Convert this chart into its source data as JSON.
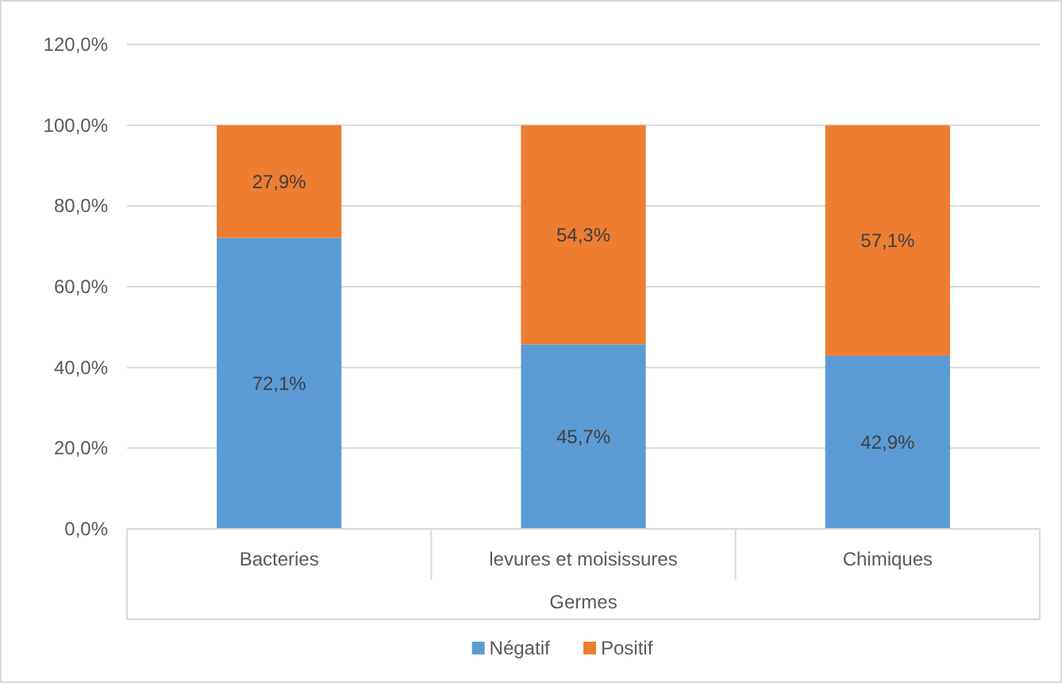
{
  "chart_data": {
    "type": "bar",
    "stacked": true,
    "xlabel": "Germes",
    "categories": [
      "Bacteries",
      "levures et moisissures",
      "Chimiques"
    ],
    "series": [
      {
        "name": "Négatif",
        "color": "#5b9bd5",
        "values": [
          72.1,
          45.7,
          42.9
        ],
        "value_labels": [
          "72,1%",
          "45,7%",
          "42,9%"
        ]
      },
      {
        "name": "Positif",
        "color": "#ed7d31",
        "values": [
          27.9,
          54.3,
          57.1
        ],
        "value_labels": [
          "27,9%",
          "54,3%",
          "57,1%"
        ]
      }
    ],
    "ylim": [
      0,
      120
    ],
    "yticks": [
      {
        "value": 0,
        "label": "0,0%"
      },
      {
        "value": 20,
        "label": "20,0%"
      },
      {
        "value": 40,
        "label": "40,0%"
      },
      {
        "value": 60,
        "label": "60,0%"
      },
      {
        "value": 80,
        "label": "80,0%"
      },
      {
        "value": 100,
        "label": "100,0%"
      },
      {
        "value": 120,
        "label": "120,0%"
      }
    ],
    "grid": "y",
    "legend": "bottom"
  }
}
